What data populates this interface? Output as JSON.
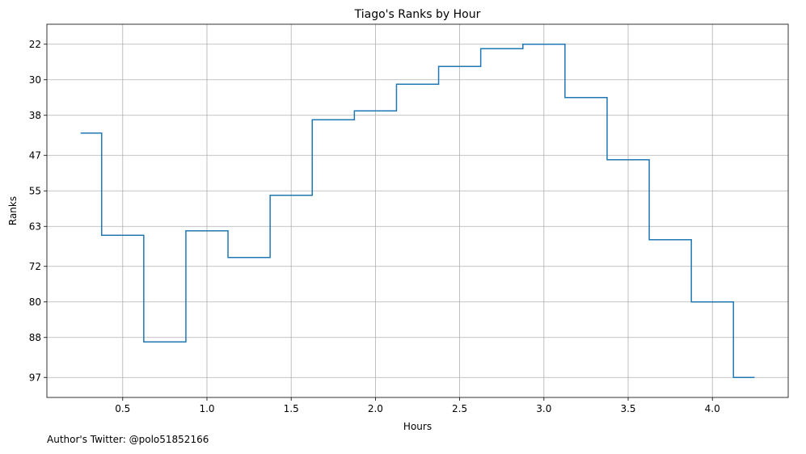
{
  "chart_data": {
    "type": "line",
    "drawstyle": "steps-mid",
    "title": "Tiago's Ranks by Hour",
    "xlabel": "Hours",
    "ylabel": "Ranks",
    "xlim": [
      0.05,
      4.45
    ],
    "ylim": [
      101.5,
      17.5
    ],
    "y_inverted": true,
    "grid": true,
    "line_color": "#1f77b4",
    "x_ticks": [
      0.5,
      1.0,
      1.5,
      2.0,
      2.5,
      3.0,
      3.5,
      4.0
    ],
    "x_tick_labels": [
      "0.5",
      "1.0",
      "1.5",
      "2.0",
      "2.5",
      "3.0",
      "3.5",
      "4.0"
    ],
    "y_ticks": [
      22,
      30,
      38,
      47,
      55,
      63,
      72,
      80,
      88,
      97
    ],
    "y_tick_labels": [
      "22",
      "30",
      "38",
      "47",
      "55",
      "63",
      "72",
      "80",
      "88",
      "97"
    ],
    "series": [
      {
        "x": [
          0.25,
          0.5,
          0.75,
          1.0,
          1.25,
          1.5,
          1.75,
          2.0,
          2.25,
          2.5,
          2.75,
          3.0,
          3.25,
          3.5,
          3.75,
          4.0,
          4.25
        ],
        "values": [
          42,
          65,
          89,
          64,
          70,
          56,
          39,
          37,
          31,
          27,
          23,
          22,
          34,
          48,
          66,
          80,
          97
        ]
      }
    ]
  },
  "footer": {
    "text": "Author's Twitter: @polo51852166"
  }
}
